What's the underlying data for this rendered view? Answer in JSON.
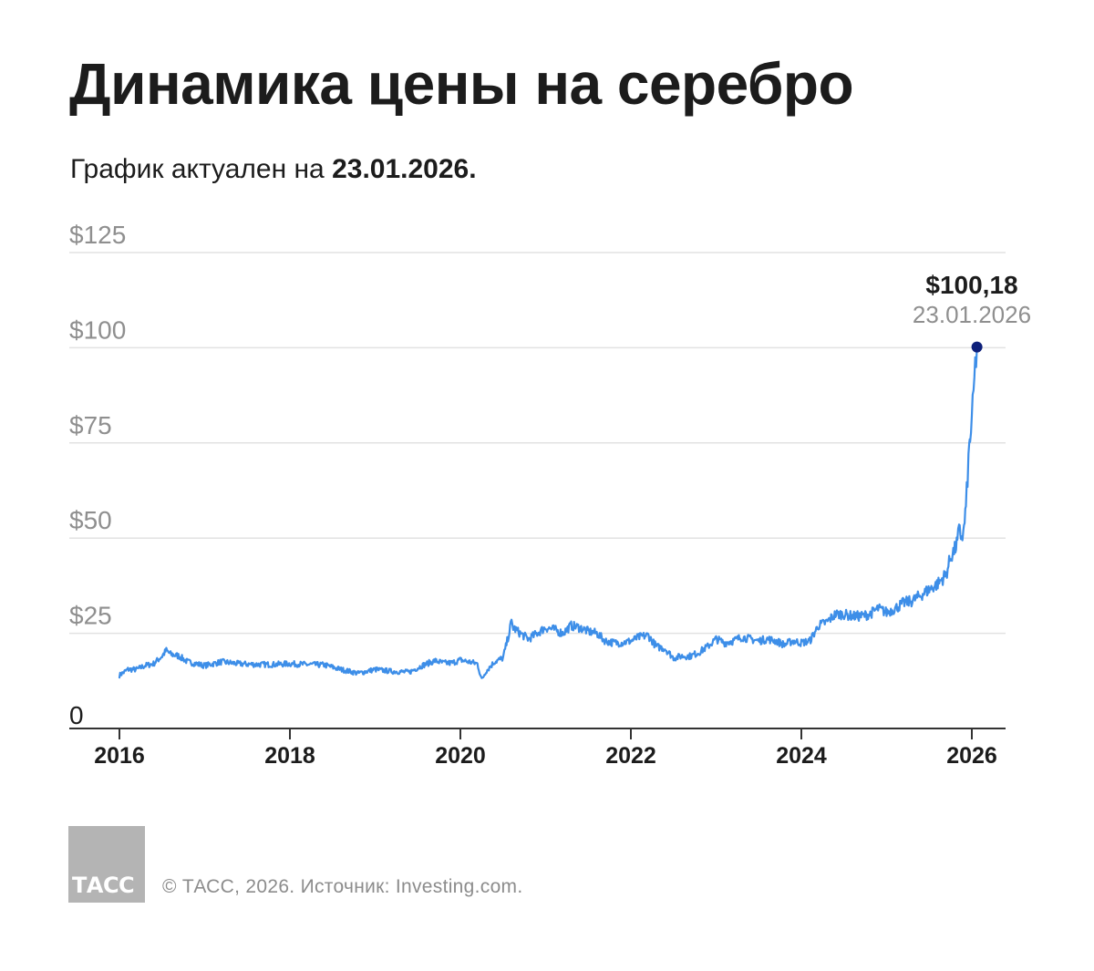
{
  "header": {
    "title": "Динамика цены на серебро",
    "subtitle_prefix": "График актуален на ",
    "subtitle_date": "23.01.2026."
  },
  "chart_data": {
    "type": "line",
    "title": "Динамика цены на серебро",
    "subtitle": "График актуален на 23.01.2026.",
    "xlabel": "",
    "ylabel": "",
    "x_range": [
      2016,
      2026.06
    ],
    "y_range": [
      0,
      125
    ],
    "y_ticks": [
      {
        "value": 0,
        "label": "0"
      },
      {
        "value": 25,
        "label": "$25"
      },
      {
        "value": 50,
        "label": "$50"
      },
      {
        "value": 75,
        "label": "$75"
      },
      {
        "value": 100,
        "label": "$100"
      },
      {
        "value": 125,
        "label": "$125"
      }
    ],
    "x_ticks": [
      {
        "value": 2016,
        "label": "2016"
      },
      {
        "value": 2018,
        "label": "2018"
      },
      {
        "value": 2020,
        "label": "2020"
      },
      {
        "value": 2022,
        "label": "2022"
      },
      {
        "value": 2024,
        "label": "2024"
      },
      {
        "value": 2026,
        "label": "2026"
      }
    ],
    "grid": true,
    "legend": "none",
    "series": [
      {
        "color": "#3d8ee8",
        "x": [
          2016.0,
          2016.1,
          2016.2,
          2016.3,
          2016.4,
          2016.5,
          2016.55,
          2016.6,
          2016.7,
          2016.8,
          2016.9,
          2017.0,
          2017.2,
          2017.4,
          2017.6,
          2017.8,
          2018.0,
          2018.2,
          2018.4,
          2018.6,
          2018.8,
          2019.0,
          2019.2,
          2019.4,
          2019.55,
          2019.7,
          2019.8,
          2019.9,
          2020.0,
          2020.1,
          2020.2,
          2020.25,
          2020.3,
          2020.4,
          2020.5,
          2020.55,
          2020.6,
          2020.62,
          2020.7,
          2020.8,
          2020.9,
          2021.0,
          2021.1,
          2021.2,
          2021.3,
          2021.4,
          2021.5,
          2021.6,
          2021.7,
          2021.8,
          2021.9,
          2022.0,
          2022.1,
          2022.2,
          2022.3,
          2022.4,
          2022.5,
          2022.6,
          2022.7,
          2022.8,
          2022.9,
          2023.0,
          2023.1,
          2023.2,
          2023.3,
          2023.4,
          2023.5,
          2023.6,
          2023.7,
          2023.8,
          2023.9,
          2024.0,
          2024.1,
          2024.2,
          2024.3,
          2024.4,
          2024.5,
          2024.6,
          2024.7,
          2024.8,
          2024.9,
          2025.0,
          2025.1,
          2025.2,
          2025.3,
          2025.4,
          2025.5,
          2025.6,
          2025.7,
          2025.75,
          2025.8,
          2025.83,
          2025.85,
          2025.88,
          2025.9,
          2025.93,
          2025.95,
          2025.97,
          2025.98,
          2026.0,
          2026.02,
          2026.04,
          2026.06
        ],
        "y": [
          14.0,
          15.5,
          15.5,
          16.5,
          17.0,
          19.0,
          20.5,
          19.5,
          19.0,
          17.5,
          17.0,
          16.5,
          17.5,
          17.0,
          16.8,
          16.8,
          17.0,
          16.8,
          16.7,
          15.5,
          14.5,
          15.5,
          15.0,
          14.8,
          16.5,
          17.8,
          17.2,
          17.2,
          18.0,
          17.5,
          17.0,
          12.8,
          15.0,
          17.5,
          18.5,
          23.0,
          28.0,
          26.5,
          25.0,
          23.5,
          25.0,
          26.5,
          26.0,
          25.0,
          27.0,
          26.5,
          25.5,
          25.0,
          23.0,
          22.5,
          22.5,
          23.0,
          24.0,
          24.5,
          21.5,
          21.0,
          18.5,
          19.0,
          19.0,
          20.0,
          21.5,
          23.5,
          22.5,
          23.0,
          24.0,
          23.5,
          23.0,
          23.5,
          23.0,
          22.0,
          23.0,
          22.5,
          23.0,
          27.0,
          28.0,
          30.0,
          30.0,
          29.5,
          29.5,
          30.0,
          31.5,
          30.5,
          31.5,
          33.0,
          33.5,
          35.0,
          36.5,
          38.0,
          40.5,
          45.0,
          47.0,
          49.0,
          52.0,
          50.5,
          51.0,
          58.0,
          66.0,
          74.0,
          76.5,
          80.0,
          88.0,
          95.0,
          100.18
        ]
      }
    ],
    "annotations": [
      {
        "x": 2026.06,
        "y": 100.18,
        "label": "$100,18",
        "sublabel": "23.01.2026"
      }
    ]
  },
  "footer": {
    "logo_text": "ТАСС",
    "credit": "© ТАСС, 2026. Источник: Investing.com."
  }
}
